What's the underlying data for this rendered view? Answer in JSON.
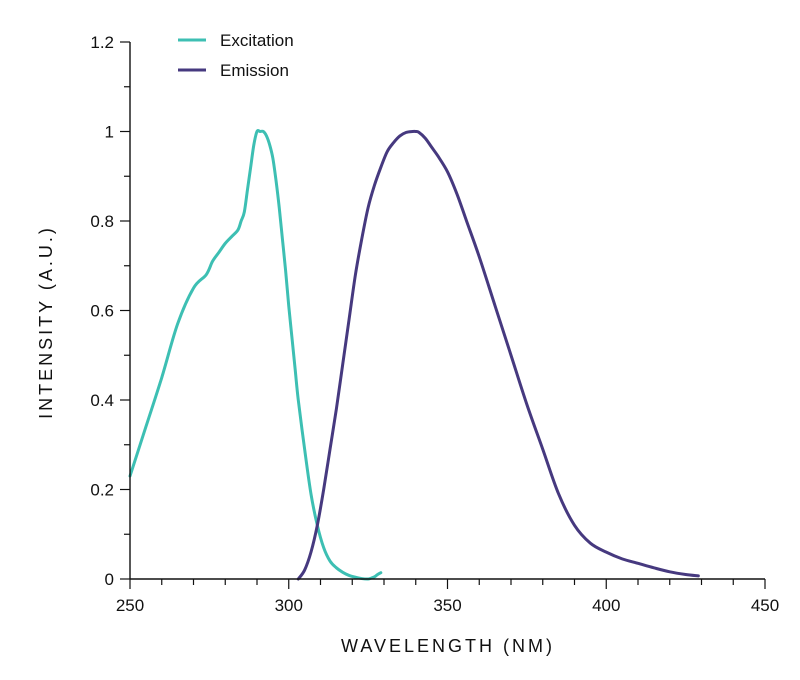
{
  "chart_data": {
    "type": "line",
    "title": "",
    "xlabel": "WAVELENGTH (NM)",
    "ylabel": "INTENSITY (A.U.)",
    "xlim": [
      250,
      450
    ],
    "ylim": [
      0,
      1.2
    ],
    "xticks": [
      250,
      300,
      350,
      400,
      450
    ],
    "xtick_labels": [
      "250",
      "300",
      "350",
      "400",
      "450"
    ],
    "xminor_step": 10,
    "yticks": [
      0,
      0.2,
      0.4,
      0.6,
      0.8,
      1,
      1.2
    ],
    "ytick_labels": [
      "0",
      "0.2",
      "0.4",
      "0.6",
      "0.8",
      "1",
      "1.2"
    ],
    "yminor_step": 0.1,
    "grid": false,
    "legend_position": "top-left",
    "series": [
      {
        "name": "Excitation",
        "color": "#3dbfb3",
        "x": [
          250,
          255,
          260,
          265,
          270,
          274,
          276,
          278,
          280,
          282,
          284,
          285,
          286,
          287,
          288,
          289,
          290,
          291,
          292,
          293,
          294,
          295,
          296,
          297,
          298,
          299,
          300,
          301,
          302,
          303,
          305,
          307,
          309,
          311,
          313,
          315,
          317,
          319,
          321,
          323,
          325,
          326,
          327,
          328,
          329
        ],
        "y": [
          0.23,
          0.34,
          0.45,
          0.57,
          0.65,
          0.68,
          0.71,
          0.73,
          0.75,
          0.765,
          0.78,
          0.8,
          0.82,
          0.87,
          0.92,
          0.97,
          1.0,
          1.0,
          1.0,
          0.99,
          0.97,
          0.94,
          0.89,
          0.83,
          0.76,
          0.69,
          0.61,
          0.54,
          0.47,
          0.4,
          0.29,
          0.19,
          0.12,
          0.07,
          0.04,
          0.025,
          0.015,
          0.008,
          0.004,
          0.001,
          0.0,
          0.002,
          0.005,
          0.01,
          0.014
        ]
      },
      {
        "name": "Emission",
        "color": "#46397f",
        "x": [
          303,
          305,
          307,
          309,
          311,
          313,
          315,
          317,
          319,
          321,
          323,
          325,
          327,
          329,
          331,
          333,
          335,
          337,
          339,
          340,
          341,
          343,
          345,
          347,
          350,
          353,
          356,
          360,
          365,
          370,
          375,
          380,
          385,
          390,
          395,
          400,
          405,
          410,
          415,
          420,
          425,
          429
        ],
        "y": [
          0.0,
          0.02,
          0.06,
          0.12,
          0.2,
          0.29,
          0.38,
          0.48,
          0.58,
          0.68,
          0.76,
          0.83,
          0.88,
          0.92,
          0.955,
          0.975,
          0.99,
          0.998,
          1.0,
          1.0,
          0.998,
          0.985,
          0.965,
          0.945,
          0.91,
          0.86,
          0.8,
          0.72,
          0.61,
          0.5,
          0.39,
          0.29,
          0.19,
          0.12,
          0.08,
          0.06,
          0.045,
          0.035,
          0.025,
          0.016,
          0.01,
          0.007
        ]
      }
    ]
  }
}
